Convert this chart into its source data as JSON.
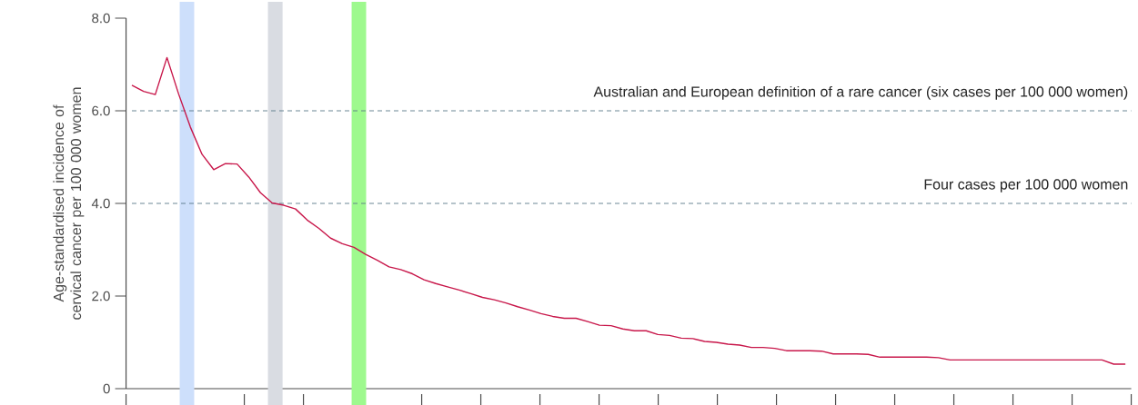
{
  "chart_data": {
    "type": "line",
    "ylabel": "Age-standardised incidence of cervical cancer per 100 000 women",
    "categories": [
      null,
      null,
      null,
      null,
      null,
      null,
      null,
      null,
      null,
      null,
      null,
      null,
      null,
      null,
      null,
      null,
      null,
      null,
      null,
      null,
      null,
      null,
      null,
      null,
      null,
      null,
      null,
      null,
      null,
      null,
      null,
      null,
      null,
      null,
      null,
      null,
      null,
      null,
      null,
      null,
      null,
      null,
      null,
      null,
      null,
      null,
      null,
      null,
      null,
      null,
      null,
      null,
      null,
      null,
      null,
      null,
      null,
      null,
      null,
      null,
      null,
      null,
      null,
      null,
      null,
      null,
      null,
      null,
      null,
      null,
      null,
      null,
      null,
      null,
      null,
      null,
      null,
      null,
      null,
      null,
      null,
      null,
      null,
      null,
      null,
      null
    ],
    "series": [
      {
        "color": "#c8174a",
        "values": [
          6.55,
          6.42,
          6.35,
          7.15,
          6.36,
          5.65,
          5.06,
          4.73,
          4.86,
          4.85,
          4.57,
          4.23,
          4.01,
          3.96,
          3.88,
          3.64,
          3.46,
          3.25,
          3.13,
          3.05,
          2.9,
          2.77,
          2.63,
          2.57,
          2.48,
          2.35,
          2.27,
          2.2,
          2.13,
          2.05,
          1.97,
          1.92,
          1.85,
          1.77,
          1.7,
          1.62,
          1.56,
          1.52,
          1.52,
          1.45,
          1.37,
          1.36,
          1.29,
          1.25,
          1.25,
          1.17,
          1.15,
          1.09,
          1.08,
          1.02,
          1.0,
          0.96,
          0.94,
          0.89,
          0.89,
          0.87,
          0.82,
          0.82,
          0.82,
          0.81,
          0.75,
          0.75,
          0.75,
          0.74,
          0.68,
          0.68,
          0.68,
          0.68,
          0.68,
          0.67,
          0.62,
          0.62,
          0.62,
          0.62,
          0.62,
          0.62,
          0.62,
          0.62,
          0.62,
          0.62,
          0.62,
          0.62,
          0.62,
          0.62,
          0.53,
          0.53
        ]
      }
    ],
    "ylim": [
      0,
      8
    ],
    "yticks": [
      0,
      {
        "value": 2,
        "label": "2.0"
      },
      {
        "value": 4,
        "label": "4.0"
      },
      {
        "value": 6,
        "label": "6.0"
      },
      {
        "value": 8,
        "label": "8.0"
      }
    ],
    "ref_lines": [
      {
        "axis": "y",
        "value": 6,
        "label": "Australian and European definition of a rare cancer (six cases per 100 000 women)",
        "color": "#5a7a8a",
        "line_style": "dashed"
      },
      {
        "axis": "y",
        "value": 4,
        "label": "Four cases per 100 000 women",
        "color": "#5a7a8a",
        "line_style": "dashed"
      }
    ],
    "line_style": "solid"
  }
}
